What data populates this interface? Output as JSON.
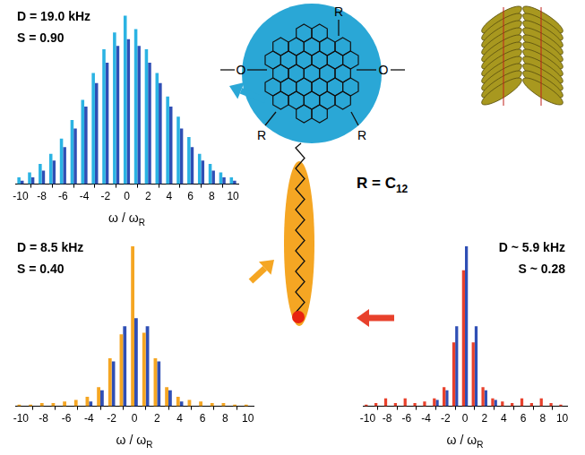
{
  "chart_data": [
    {
      "type": "bar",
      "x": [
        -10,
        -9,
        -8,
        -7,
        -6,
        -5,
        -4,
        -3,
        -2,
        -1,
        0,
        1,
        2,
        3,
        4,
        5,
        6,
        7,
        8,
        9,
        10
      ],
      "xlim": [
        -10.5,
        10.5
      ],
      "xticks": [
        -10,
        -8,
        -6,
        -4,
        -2,
        0,
        2,
        4,
        6,
        8,
        10
      ],
      "ylim": [
        0,
        1.05
      ],
      "tick_labels": "x",
      "xlabel": {
        "text": "ω / ω",
        "subscript": "R"
      },
      "annotations": [
        "D = 19.0 kHz",
        "S = 0.90"
      ],
      "series": [
        {
          "color": "#2bb3e3",
          "values": [
            0.04,
            0.07,
            0.12,
            0.18,
            0.27,
            0.38,
            0.5,
            0.66,
            0.8,
            0.9,
            1.0,
            0.92,
            0.8,
            0.66,
            0.52,
            0.4,
            0.28,
            0.18,
            0.12,
            0.07,
            0.04
          ]
        },
        {
          "color": "#2f4fb5",
          "values": [
            0.02,
            0.04,
            0.08,
            0.14,
            0.22,
            0.33,
            0.46,
            0.6,
            0.72,
            0.82,
            0.86,
            0.82,
            0.72,
            0.6,
            0.46,
            0.33,
            0.22,
            0.14,
            0.08,
            0.04,
            0.02
          ]
        }
      ]
    },
    {
      "type": "bar",
      "x": [
        -10,
        -9,
        -8,
        -7,
        -6,
        -5,
        -4,
        -3,
        -2,
        -1,
        0,
        1,
        2,
        3,
        4,
        5,
        6,
        7,
        8,
        9,
        10
      ],
      "xlim": [
        -10.5,
        10.5
      ],
      "xticks": [
        -10,
        -8,
        -6,
        -4,
        -2,
        0,
        2,
        4,
        6,
        8,
        10
      ],
      "ylim": [
        0,
        1.05
      ],
      "tick_labels": "x",
      "xlabel": {
        "text": "ω / ω",
        "subscript": "R"
      },
      "annotations": [
        "D = 8.5 kHz",
        "S = 0.40"
      ],
      "series": [
        {
          "color": "#f5a623",
          "values": [
            0.01,
            0.01,
            0.02,
            0.02,
            0.03,
            0.04,
            0.06,
            0.12,
            0.3,
            0.45,
            1.0,
            0.46,
            0.3,
            0.12,
            0.06,
            0.04,
            0.03,
            0.02,
            0.02,
            0.01,
            0.01
          ]
        },
        {
          "color": "#2f4fb5",
          "values": [
            0,
            0,
            0,
            0,
            0,
            0,
            0.03,
            0.1,
            0.28,
            0.5,
            0.55,
            0.5,
            0.28,
            0.1,
            0.03,
            0,
            0,
            0,
            0,
            0,
            0
          ]
        }
      ]
    },
    {
      "type": "bar",
      "x": [
        -10,
        -9,
        -8,
        -7,
        -6,
        -5,
        -4,
        -3,
        -2,
        -1,
        0,
        1,
        2,
        3,
        4,
        5,
        6,
        7,
        8,
        9,
        10
      ],
      "xlim": [
        -10.5,
        10.5
      ],
      "xticks": [
        -10,
        -8,
        -6,
        -4,
        -2,
        0,
        2,
        4,
        6,
        8,
        10
      ],
      "ylim": [
        0,
        1.05
      ],
      "tick_labels": "x",
      "xlabel": {
        "text": "ω / ω",
        "subscript": "R"
      },
      "annotations": [
        "D ~ 5.9 kHz",
        "S ~ 0.28"
      ],
      "series": [
        {
          "color": "#e8412c",
          "values": [
            0.01,
            0.02,
            0.05,
            0.02,
            0.05,
            0.02,
            0.03,
            0.05,
            0.12,
            0.4,
            0.85,
            0.4,
            0.12,
            0.05,
            0.03,
            0.02,
            0.05,
            0.02,
            0.05,
            0.02,
            0.01
          ]
        },
        {
          "color": "#2f4fb5",
          "values": [
            0,
            0,
            0,
            0,
            0,
            0,
            0,
            0.04,
            0.1,
            0.5,
            1.0,
            0.5,
            0.1,
            0.04,
            0,
            0,
            0,
            0,
            0,
            0,
            0
          ]
        }
      ]
    }
  ],
  "diagram": {
    "r_labels": [
      "R",
      "R",
      "R"
    ],
    "o_labels": [
      "O",
      "O"
    ],
    "definition": {
      "text": "R = C",
      "subscript": "12"
    }
  }
}
